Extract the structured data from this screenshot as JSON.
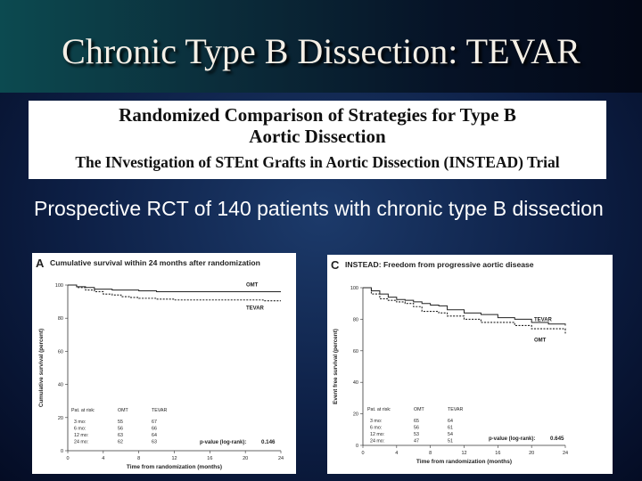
{
  "slide": {
    "title": "Chronic Type B Dissection: TEVAR",
    "header": {
      "line1": "Randomized Comparison of Strategies for Type B",
      "line2": "Aortic Dissection",
      "line3": "The INvestigation of STEnt Grafts in Aortic Dissection (INSTEAD) Trial"
    },
    "bullet": "Prospective RCT of 140 patients with chronic type B dissection"
  },
  "chart_data": [
    {
      "type": "line",
      "panel_letter": "A",
      "title": "Cumulative survival within 24 months after randomization",
      "xlabel": "Time from randomization (months)",
      "ylabel": "Cumulative survival (percent)",
      "xlim": [
        0,
        24
      ],
      "ylim": [
        0,
        100
      ],
      "x_ticks": [
        "0",
        "4",
        "8",
        "12",
        "16",
        "20",
        "24"
      ],
      "y_ticks": [
        "0",
        "20",
        "40",
        "60",
        "80",
        "100"
      ],
      "series": [
        {
          "name": "OMT",
          "x": [
            0,
            1,
            2,
            3,
            4,
            5,
            6,
            8,
            10,
            12,
            14,
            18,
            24
          ],
          "y": [
            100,
            99,
            98.5,
            97.5,
            97.5,
            97,
            97,
            96.5,
            96,
            96,
            96,
            96,
            96
          ]
        },
        {
          "name": "TEVAR",
          "x": [
            0,
            1,
            2,
            3,
            4,
            5,
            6,
            7,
            8,
            10,
            12,
            14,
            18,
            22,
            24
          ],
          "y": [
            100,
            98.5,
            97,
            96,
            94.5,
            94,
            93,
            92.5,
            92,
            91.5,
            91,
            91,
            91,
            90.5,
            90.5
          ]
        }
      ],
      "risk_table": {
        "header": [
          "Pat. at risk:",
          "OMT",
          "TEVAR"
        ],
        "rows": [
          [
            "3 mo:",
            "55",
            "67"
          ],
          [
            "6 mo:",
            "56",
            "66"
          ],
          [
            "12 mo:",
            "63",
            "64"
          ],
          [
            "24 mo:",
            "62",
            "63"
          ]
        ]
      },
      "pvalue_label": "p-value (log-rank):",
      "pvalue": "0.146"
    },
    {
      "type": "line",
      "panel_letter": "C",
      "title": "INSTEAD: Freedom from progressive aortic disease",
      "xlabel": "Time from randomization (months)",
      "ylabel": "Event free survival (percent)",
      "xlim": [
        0,
        24
      ],
      "ylim": [
        0,
        100
      ],
      "x_ticks": [
        "0",
        "4",
        "8",
        "12",
        "16",
        "20",
        "24"
      ],
      "y_ticks": [
        "0",
        "20",
        "40",
        "60",
        "80",
        "100"
      ],
      "series": [
        {
          "name": "TEVAR",
          "x": [
            0,
            1,
            2,
            3,
            4,
            5,
            6,
            7,
            8,
            9,
            10,
            12,
            14,
            16,
            18,
            20,
            22,
            24
          ],
          "y": [
            100,
            98,
            96,
            94,
            92.5,
            92,
            91,
            90,
            89,
            88.5,
            86,
            84,
            83,
            81,
            80,
            78,
            77,
            76
          ]
        },
        {
          "name": "OMT",
          "x": [
            0,
            1,
            2,
            3,
            4,
            5,
            6,
            7,
            8,
            9,
            10,
            12,
            14,
            16,
            18,
            20,
            22,
            24
          ],
          "y": [
            100,
            96,
            93,
            92,
            91,
            90,
            88,
            85,
            85,
            84,
            82,
            80,
            78,
            78,
            76,
            74,
            74,
            71
          ]
        }
      ],
      "risk_table": {
        "header": [
          "Pat. at risk:",
          "OMT",
          "TEVAR"
        ],
        "rows": [
          [
            "3 mo:",
            "65",
            "64"
          ],
          [
            "6 mo:",
            "56",
            "61"
          ],
          [
            "12 mo:",
            "53",
            "54"
          ],
          [
            "24 mo:",
            "47",
            "51"
          ]
        ]
      },
      "pvalue_label": "p-value (log-rank):",
      "pvalue": "0.645"
    }
  ]
}
